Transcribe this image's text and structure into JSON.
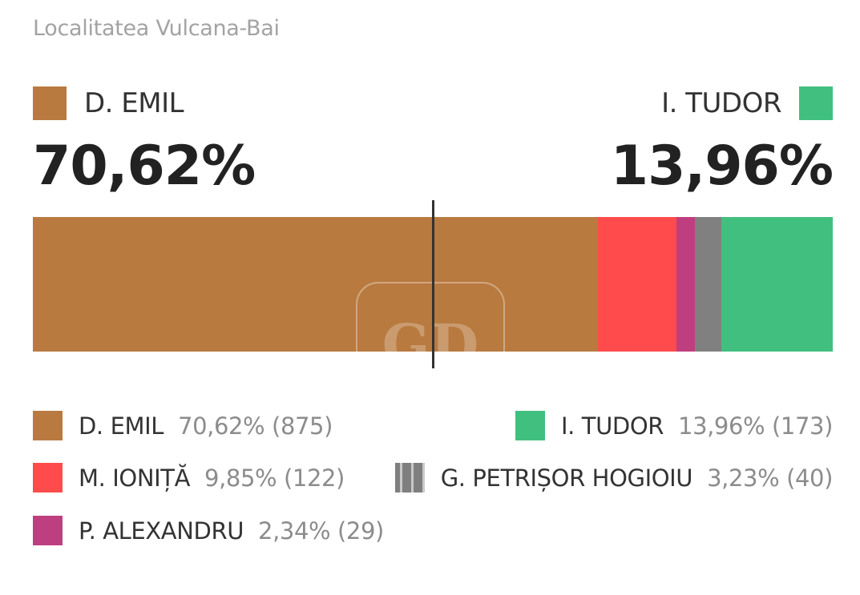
{
  "subtitle": "Localitatea Vulcana-Bai",
  "leaders": {
    "left": {
      "name": "D. EMIL",
      "percent_label": "70,62%",
      "color": "#B87A3F"
    },
    "right": {
      "name": "I. TUDOR",
      "percent_label": "13,96%",
      "color": "#41BF7F"
    }
  },
  "watermark_text": "GD",
  "chart_data": {
    "type": "bar",
    "orientation": "horizontal-stacked",
    "x_range": [
      0,
      100
    ],
    "midline_percent": 50,
    "series": [
      {
        "name": "D. EMIL",
        "percent": 70.62,
        "votes": 875,
        "color": "#B87A3F"
      },
      {
        "name": "M. IONIȚĂ",
        "percent": 9.85,
        "votes": 122,
        "color": "#FF4B4B"
      },
      {
        "name": "P. ALEXANDRU",
        "percent": 2.34,
        "votes": 29,
        "color": "#BE3F7F"
      },
      {
        "name": "G. PETRIȘOR HOGIOIU",
        "percent": 3.23,
        "votes": 40,
        "color": "#808080"
      },
      {
        "name": "I. TUDOR",
        "percent": 13.96,
        "votes": 173,
        "color": "#41BF7F"
      }
    ]
  },
  "legend": [
    {
      "name": "D. EMIL",
      "value": "70,62% (875)",
      "color": "#B87A3F"
    },
    {
      "name": "I. TUDOR",
      "value": "13,96% (173)",
      "color": "#41BF7F"
    },
    {
      "name": "M. IONIȚĂ",
      "value": "9,85% (122)",
      "color": "#FF4B4B"
    },
    {
      "name": "G. PETRIȘOR HOGIOIU",
      "value": "3,23% (40)",
      "color": "#808080"
    },
    {
      "name": "P. ALEXANDRU",
      "value": "2,34% (29)",
      "color": "#BE3F7F"
    }
  ]
}
